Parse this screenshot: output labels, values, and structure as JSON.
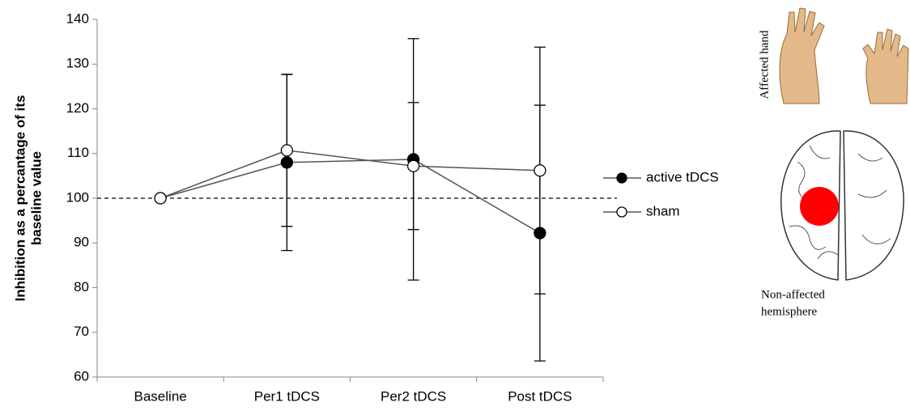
{
  "chart_data": {
    "type": "line",
    "y_label": [
      "Inhibition as a percantage of its",
      "baseline value"
    ],
    "categories": [
      "Baseline",
      "Per1 tDCS",
      "Per2 tDCS",
      "Post tDCS"
    ],
    "series": [
      {
        "name": "active tDCS",
        "color": "#000000",
        "values": [
          100,
          108,
          108.7,
          92.2
        ],
        "errors": [
          null,
          19.7,
          27,
          28.6
        ]
      },
      {
        "name": "sham",
        "color": "#ffffff",
        "values": [
          100,
          110.7,
          107.2,
          106.2
        ],
        "errors": [
          null,
          17,
          14.2,
          27.6
        ]
      }
    ],
    "ylim": [
      60,
      140
    ],
    "yticks": [
      60,
      70,
      80,
      90,
      100,
      110,
      120,
      130,
      140
    ],
    "reference_line": 100,
    "legend": "right"
  },
  "illustration": {
    "hand_label": "Affected hand",
    "hemisphere_label": [
      "Non-affected",
      "hemisphere"
    ]
  }
}
